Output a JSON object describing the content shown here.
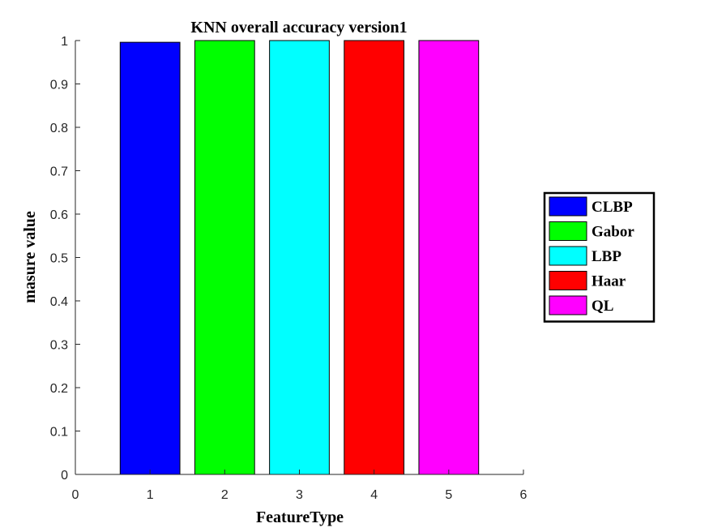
{
  "chart_data": {
    "type": "bar",
    "title": "KNN overall accuracy version1",
    "xlabel": "FeatureType",
    "ylabel": "masure value",
    "xlim": [
      0,
      6
    ],
    "ylim": [
      0,
      1
    ],
    "xticks": [
      "0",
      "1",
      "2",
      "3",
      "4",
      "5",
      "6"
    ],
    "yticks": [
      "0",
      "0.1",
      "0.2",
      "0.3",
      "0.4",
      "0.5",
      "0.6",
      "0.7",
      "0.8",
      "0.9",
      "1"
    ],
    "grid": false,
    "legend_position": "right-outside",
    "series": [
      {
        "name": "CLBP",
        "x": 1,
        "value": 0.996,
        "color": "#0000ff"
      },
      {
        "name": "Gabor",
        "x": 2,
        "value": 1.0,
        "color": "#00ff00"
      },
      {
        "name": "LBP",
        "x": 3,
        "value": 1.0,
        "color": "#00ffff"
      },
      {
        "name": "Haar",
        "x": 4,
        "value": 1.0,
        "color": "#ff0000"
      },
      {
        "name": "QL",
        "x": 5,
        "value": 1.0,
        "color": "#ff00ff"
      }
    ]
  }
}
